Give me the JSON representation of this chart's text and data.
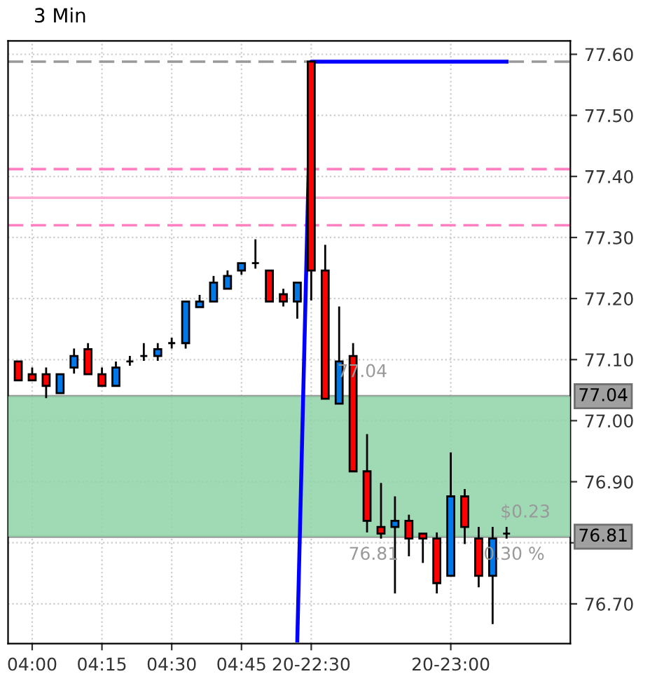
{
  "chart_data": {
    "type": "candlestick",
    "title": "3 Min",
    "categories": [
      null,
      "04:00",
      null,
      null,
      null,
      null,
      "04:15",
      null,
      null,
      null,
      null,
      "04:30",
      null,
      null,
      null,
      null,
      "04:45",
      null,
      null,
      null,
      null,
      "20-22:30",
      null,
      null,
      null,
      null,
      null,
      null,
      null,
      null,
      null,
      "20-23:00",
      null,
      null,
      null,
      null
    ],
    "ohlc": [
      [
        77.097,
        77.097,
        77.066,
        77.066
      ],
      [
        77.076,
        77.087,
        77.066,
        77.066
      ],
      [
        77.076,
        77.087,
        77.037,
        77.057
      ],
      [
        77.045,
        77.076,
        77.045,
        77.076
      ],
      [
        77.087,
        77.118,
        77.077,
        77.106
      ],
      [
        77.117,
        77.127,
        77.076,
        77.076
      ],
      [
        77.076,
        77.087,
        77.057,
        77.057
      ],
      [
        77.057,
        77.097,
        77.057,
        77.087
      ],
      [
        77.097,
        77.106,
        77.09,
        77.097
      ],
      [
        77.106,
        77.127,
        77.098,
        77.106
      ],
      [
        77.106,
        77.127,
        77.098,
        77.117
      ],
      [
        77.127,
        77.136,
        77.118,
        77.127
      ],
      [
        77.127,
        77.195,
        77.118,
        77.195
      ],
      [
        77.186,
        77.206,
        77.186,
        77.195
      ],
      [
        77.195,
        77.237,
        77.195,
        77.226
      ],
      [
        77.216,
        77.246,
        77.216,
        77.237
      ],
      [
        77.246,
        77.258,
        77.239,
        77.258
      ],
      [
        77.258,
        77.297,
        77.249,
        77.258
      ],
      [
        77.246,
        77.246,
        77.195,
        77.195
      ],
      [
        77.207,
        77.216,
        77.187,
        77.195
      ],
      [
        77.195,
        77.226,
        77.167,
        77.226
      ],
      [
        77.588,
        77.588,
        77.197,
        77.246
      ],
      [
        77.246,
        77.288,
        77.036,
        77.036
      ],
      [
        77.028,
        77.187,
        77.028,
        77.097
      ],
      [
        77.106,
        77.127,
        76.917,
        76.917
      ],
      [
        76.917,
        76.978,
        76.817,
        76.836
      ],
      [
        76.826,
        76.898,
        76.807,
        76.815
      ],
      [
        76.826,
        76.876,
        76.717,
        76.836
      ],
      [
        76.836,
        76.846,
        76.778,
        76.807
      ],
      [
        76.815,
        76.815,
        76.767,
        76.807
      ],
      [
        76.807,
        76.817,
        76.717,
        76.734
      ],
      [
        76.746,
        76.948,
        76.746,
        76.876
      ],
      [
        76.876,
        76.888,
        76.798,
        76.826
      ],
      [
        76.807,
        76.826,
        76.727,
        76.746
      ],
      [
        76.746,
        76.826,
        76.667,
        76.807
      ],
      [
        76.815,
        76.826,
        76.807,
        76.815
      ]
    ],
    "colors": [
      "#ff0000",
      "#ff0000",
      "#ff0000",
      "#0078e8",
      "#0078e8",
      "#ff0000",
      "#ff0000",
      "#0078e8",
      "#000000",
      "#000000",
      "#0078e8",
      "#000000",
      "#0078e8",
      "#0078e8",
      "#0078e8",
      "#0078e8",
      "#0078e8",
      "#000000",
      "#ff0000",
      "#ff0000",
      "#0078e8",
      "#ff0000",
      "#ff0000",
      "#0078e8",
      "#ff0000",
      "#ff0000",
      "#ff0000",
      "#0078e8",
      "#ff0000",
      "#ff0000",
      "#ff0000",
      "#0078e8",
      "#ff0000",
      "#ff0000",
      "#0078e8",
      "#000000"
    ],
    "series": [
      {
        "type": "line",
        "color": "#0000ff",
        "values": [
          null,
          null,
          null,
          null,
          null,
          null,
          null,
          null,
          null,
          null,
          null,
          null,
          null,
          null,
          null,
          null,
          null,
          null,
          null,
          null,
          76.64,
          77.588,
          77.588,
          77.588,
          77.588,
          77.588,
          77.588,
          77.588,
          77.588,
          77.588,
          77.588,
          77.588,
          77.588,
          77.588,
          77.588,
          77.588
        ]
      }
    ],
    "ref_lines": [
      {
        "axis": "y",
        "value": 77.588,
        "color": "#999999",
        "line_style": "dashed"
      },
      {
        "axis": "y",
        "value": 77.412,
        "color": "#ff80c0",
        "line_style": "dashed"
      },
      {
        "axis": "y",
        "value": 77.365,
        "color": "#ffaad4",
        "line_style": "solid"
      },
      {
        "axis": "y",
        "value": 77.32,
        "color": "#ff80c0",
        "line_style": "dashed"
      },
      {
        "axis": "y",
        "value": 77.04,
        "color": "#999999",
        "line_style": "solid",
        "label": "77.04"
      },
      {
        "axis": "y",
        "value": 76.81,
        "color": "#999999",
        "line_style": "solid",
        "label": "76.81"
      }
    ],
    "bands": [
      {
        "axis": "y",
        "from": 76.81,
        "to": 77.04,
        "color": "#8fd3a8"
      }
    ],
    "annotations": [
      {
        "text": "77.04",
        "y": 77.04
      },
      {
        "text": "76.81",
        "y": 76.81
      },
      {
        "text": "$0.23",
        "y": 76.81
      },
      {
        "text": "0.30 %",
        "y": 76.81
      }
    ],
    "ylim": [
      76.635,
      77.622
    ],
    "yticks": [
      {
        "value": 76.7,
        "label": "76.70"
      },
      {
        "value": 76.8,
        "label": null
      },
      {
        "value": 76.9,
        "label": "76.90"
      },
      {
        "value": 77.0,
        "label": "77.00"
      },
      {
        "value": 77.1,
        "label": "77.10"
      },
      {
        "value": 77.2,
        "label": "77.20"
      },
      {
        "value": 77.3,
        "label": "77.30"
      },
      {
        "value": 77.4,
        "label": "77.40"
      },
      {
        "value": 77.5,
        "label": "77.50"
      },
      {
        "value": 77.6,
        "label": "77.60"
      }
    ],
    "grid": true
  }
}
